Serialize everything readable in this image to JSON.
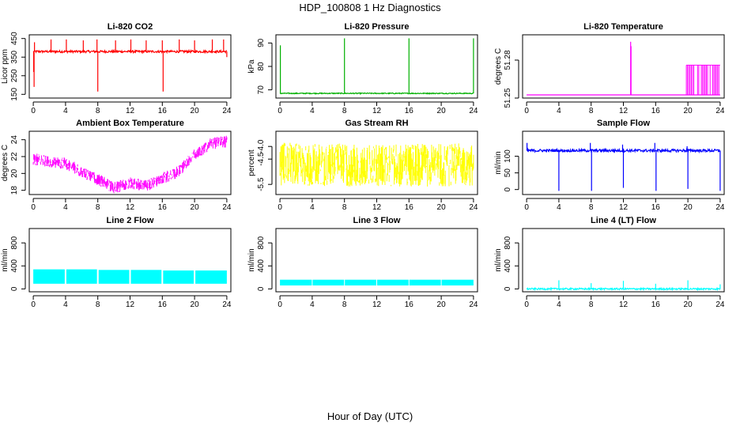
{
  "figure": {
    "title": "HDP_100808  1 Hz Diagnostics",
    "xlabel": "Hour of Day (UTC)",
    "x_ticks": [
      0,
      4,
      8,
      12,
      16,
      20,
      24
    ],
    "x_tick_labels": [
      "0",
      "4",
      "8",
      "12",
      "16",
      "20",
      "24"
    ],
    "xlim": [
      -0.5,
      24.5
    ]
  },
  "chart_data": [
    {
      "id": "co2",
      "type": "line",
      "title": "Li-820 CO2",
      "ylabel": "Licor ppm",
      "ylim": [
        130,
        470
      ],
      "yticks": [
        150,
        250,
        350,
        450
      ],
      "ytick_labels": [
        "150",
        "250",
        "350",
        "450"
      ],
      "color": "#ff0000",
      "x_range": [
        0,
        24
      ],
      "series": [
        {
          "name": "CO2",
          "baseline": 380,
          "noise": 6,
          "spikes": [
            {
              "x": 0.05,
              "y": 270
            },
            {
              "x": 0.1,
              "y": 190
            },
            {
              "x": 0.15,
              "y": 430
            },
            {
              "x": 2.2,
              "y": 445
            },
            {
              "x": 4.1,
              "y": 445
            },
            {
              "x": 6.2,
              "y": 440
            },
            {
              "x": 7.9,
              "y": 445
            },
            {
              "x": 8.0,
              "y": 165
            },
            {
              "x": 10.2,
              "y": 440
            },
            {
              "x": 12.1,
              "y": 445
            },
            {
              "x": 14.0,
              "y": 440
            },
            {
              "x": 16.0,
              "y": 440
            },
            {
              "x": 16.1,
              "y": 165
            },
            {
              "x": 18.1,
              "y": 445
            },
            {
              "x": 20.0,
              "y": 440
            },
            {
              "x": 22.2,
              "y": 445
            },
            {
              "x": 23.6,
              "y": 445
            },
            {
              "x": 24.0,
              "y": 350
            }
          ]
        }
      ]
    },
    {
      "id": "pressure",
      "type": "line",
      "title": "Li-820 Pressure",
      "ylabel": "kPa",
      "ylim": [
        66.5,
        93.5
      ],
      "yticks": [
        70,
        80,
        90
      ],
      "ytick_labels": [
        "70",
        "80",
        "90"
      ],
      "color": "#00b000",
      "x_range": [
        0,
        24
      ],
      "series": [
        {
          "name": "Pressure",
          "baseline": 68.5,
          "noise": 0.2,
          "spikes": [
            {
              "x": 0.05,
              "y": 89
            },
            {
              "x": 8.0,
              "y": 92
            },
            {
              "x": 16.0,
              "y": 92
            },
            {
              "x": 24.0,
              "y": 92
            }
          ]
        }
      ]
    },
    {
      "id": "temperature",
      "type": "line",
      "title": "Li-820 Temperature",
      "ylabel": "degrees C",
      "ylim": [
        51.25,
        51.3
      ],
      "yticks": [
        51.25,
        51.28
      ],
      "ytick_labels": [
        "51.25",
        "51.28"
      ],
      "color": "#ff00ff",
      "x_range": [
        0,
        24
      ],
      "series": [
        {
          "name": "Temperature",
          "baseline": 51.2525,
          "noise": 0,
          "spikes": [
            {
              "x": 12.9,
              "y": 51.2945
            },
            {
              "x": 12.95,
              "y": 51.291
            }
          ],
          "bands": [
            {
              "from": 19.8,
              "to": 24.0,
              "low": 51.2525,
              "high": 51.276
            }
          ]
        }
      ]
    },
    {
      "id": "ambient",
      "type": "line",
      "title": "Ambient Box Temperature",
      "ylabel": "degrees C",
      "ylim": [
        17.5,
        25
      ],
      "yticks": [
        18,
        20,
        22,
        24
      ],
      "ytick_labels": [
        "18",
        "20",
        "22",
        "24"
      ],
      "color": "#ff00ff",
      "x_range": [
        0,
        24
      ],
      "series": [
        {
          "name": "Ambient",
          "noise": 0.7,
          "curve": [
            [
              0,
              21.7
            ],
            [
              4,
              21.2
            ],
            [
              8,
              19.3
            ],
            [
              10,
              18.3
            ],
            [
              12,
              18.9
            ],
            [
              14,
              18.5
            ],
            [
              16,
              19.4
            ],
            [
              18,
              20.2
            ],
            [
              20,
              22.2
            ],
            [
              22,
              23.5
            ],
            [
              24,
              23.8
            ]
          ]
        }
      ]
    },
    {
      "id": "rh",
      "type": "line",
      "title": "Gas Stream RH",
      "ylabel": "percent",
      "ylim": [
        -5.9,
        -3.4
      ],
      "yticks": [
        -5.5,
        -4.5,
        -4.0
      ],
      "ytick_labels": [
        "-5.5",
        "-4.5",
        "-4.0"
      ],
      "color": "#ffff00",
      "x_range": [
        0,
        24
      ],
      "series": [
        {
          "name": "RH",
          "noise": 0.85,
          "curve": [
            [
              0,
              -4.7
            ],
            [
              12,
              -4.75
            ],
            [
              24,
              -4.72
            ]
          ]
        }
      ]
    },
    {
      "id": "sample_flow",
      "type": "line",
      "title": "Sample Flow",
      "ylabel": "ml/min",
      "ylim": [
        -15,
        175
      ],
      "yticks": [
        0,
        50,
        100
      ],
      "ytick_labels": [
        "0",
        "50",
        "100"
      ],
      "color": "#0000ff",
      "x_range": [
        0,
        24
      ],
      "series": [
        {
          "name": "Sample Flow",
          "baseline": 117,
          "noise": 4,
          "spikes": [
            {
              "x": 0.05,
              "y": 140
            },
            {
              "x": 4.0,
              "y": -4
            },
            {
              "x": 7.9,
              "y": 140
            },
            {
              "x": 8.05,
              "y": -4
            },
            {
              "x": 11.9,
              "y": 135
            },
            {
              "x": 12.0,
              "y": 5
            },
            {
              "x": 15.9,
              "y": 140
            },
            {
              "x": 16.05,
              "y": -4
            },
            {
              "x": 19.9,
              "y": 130
            },
            {
              "x": 20.0,
              "y": 2
            },
            {
              "x": 23.9,
              "y": 120
            },
            {
              "x": 24.0,
              "y": -4
            }
          ]
        }
      ]
    },
    {
      "id": "line2",
      "type": "area",
      "title": "Line 2 Flow",
      "ylabel": "ml/min",
      "ylim": [
        -50,
        1050
      ],
      "yticks": [
        0,
        400,
        800
      ],
      "ytick_labels": [
        "0",
        "400",
        "800"
      ],
      "color": "#00ffff",
      "x_range": [
        0,
        24
      ],
      "series": [
        {
          "name": "Line 2",
          "band_segments": [
            {
              "from": 0,
              "to": 3.9,
              "low": 90,
              "high": 340
            },
            {
              "from": 4.1,
              "to": 7.9,
              "low": 90,
              "high": 340
            },
            {
              "from": 8.1,
              "to": 11.9,
              "low": 90,
              "high": 330
            },
            {
              "from": 12.1,
              "to": 15.9,
              "low": 90,
              "high": 330
            },
            {
              "from": 16.1,
              "to": 19.9,
              "low": 90,
              "high": 320
            },
            {
              "from": 20.1,
              "to": 24.0,
              "low": 90,
              "high": 320
            }
          ]
        }
      ]
    },
    {
      "id": "line3",
      "type": "area",
      "title": "Line 3 Flow",
      "ylabel": "ml/min",
      "ylim": [
        -50,
        1050
      ],
      "yticks": [
        0,
        400,
        800
      ],
      "ytick_labels": [
        "0",
        "400",
        "800"
      ],
      "color": "#00ffff",
      "x_range": [
        0,
        24
      ],
      "series": [
        {
          "name": "Line 3",
          "band_segments": [
            {
              "from": 0,
              "to": 3.95,
              "low": 60,
              "high": 160
            },
            {
              "from": 4.05,
              "to": 7.95,
              "low": 60,
              "high": 160
            },
            {
              "from": 8.05,
              "to": 11.95,
              "low": 60,
              "high": 160
            },
            {
              "from": 12.05,
              "to": 15.95,
              "low": 60,
              "high": 160
            },
            {
              "from": 16.05,
              "to": 19.95,
              "low": 60,
              "high": 160
            },
            {
              "from": 20.05,
              "to": 24.0,
              "low": 60,
              "high": 160
            }
          ]
        }
      ]
    },
    {
      "id": "line4",
      "type": "line",
      "title": "Line 4 (LT) Flow",
      "ylabel": "ml/min",
      "ylim": [
        -50,
        1050
      ],
      "yticks": [
        0,
        400,
        800
      ],
      "ytick_labels": [
        "0",
        "400",
        "800"
      ],
      "color": "#00ffff",
      "x_range": [
        0,
        24
      ],
      "series": [
        {
          "name": "Line 4",
          "baseline": 0,
          "noise": 14,
          "spikes": [
            {
              "x": 4.0,
              "y": 150
            },
            {
              "x": 8.0,
              "y": 100
            },
            {
              "x": 12.0,
              "y": 140
            },
            {
              "x": 16.0,
              "y": 90
            },
            {
              "x": 20.0,
              "y": 150
            },
            {
              "x": 24.0,
              "y": 80
            }
          ]
        }
      ]
    }
  ]
}
